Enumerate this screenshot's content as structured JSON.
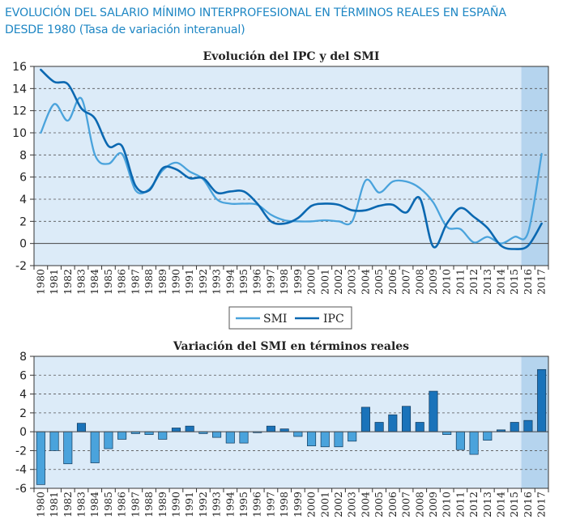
{
  "header": {
    "title_line1": "EVOLUCIÓN DEL SALARIO MÍNIMO INTERPROFESIONAL EN TÉRMINOS REALES EN ESPAÑA",
    "title_line2": "DESDE 1980 (Tasa de variación interanual)"
  },
  "colors": {
    "panel_bg": "#dcebf8",
    "highlight_bg": "#b5d4ee",
    "smi_line": "#4aa3dc",
    "ipc_line": "#0b68b1",
    "bar_neg": "#4aa3dc",
    "bar_pos": "#1a73ba",
    "bar_stroke": "#123a5c"
  },
  "chart_data": [
    {
      "type": "line",
      "title": "Evolución del IPC y del SMI",
      "categories": [
        "1980",
        "1981",
        "1982",
        "1983",
        "1984",
        "1985",
        "1986",
        "1987",
        "1988",
        "1989",
        "1990",
        "1991",
        "1992",
        "1993",
        "1994",
        "1995",
        "1996",
        "1997",
        "1998",
        "1999",
        "2000",
        "2001",
        "2002",
        "2003",
        "2004",
        "2005",
        "2006",
        "2007",
        "2008",
        "2009",
        "2010",
        "2011",
        "2012",
        "2013",
        "2014",
        "2015",
        "2016",
        "2017"
      ],
      "ylim": [
        -2,
        16
      ],
      "yticks": [
        -2,
        0,
        2,
        4,
        6,
        8,
        10,
        12,
        14,
        16
      ],
      "highlight_range": [
        "2016",
        "2017"
      ],
      "series": [
        {
          "name": "SMI",
          "values": [
            10.0,
            12.6,
            11.1,
            13.1,
            8.0,
            7.2,
            8.1,
            4.8,
            4.9,
            6.6,
            7.3,
            6.5,
            5.8,
            4.0,
            3.6,
            3.6,
            3.5,
            2.6,
            2.1,
            2.0,
            2.0,
            2.1,
            2.0,
            2.0,
            5.7,
            4.6,
            5.6,
            5.6,
            5.0,
            3.7,
            1.5,
            1.3,
            0.1,
            0.6,
            0.0,
            0.6,
            1.0,
            8.1
          ]
        },
        {
          "name": "IPC",
          "values": [
            15.7,
            14.6,
            14.4,
            12.2,
            11.3,
            8.8,
            8.8,
            5.2,
            4.8,
            6.8,
            6.7,
            5.9,
            5.9,
            4.6,
            4.7,
            4.7,
            3.6,
            2.0,
            1.8,
            2.3,
            3.4,
            3.6,
            3.5,
            3.0,
            3.0,
            3.4,
            3.5,
            2.8,
            4.1,
            -0.3,
            1.8,
            3.2,
            2.4,
            1.4,
            -0.2,
            -0.5,
            -0.2,
            1.8
          ]
        }
      ],
      "legend": {
        "position": "bottom-center",
        "entries": [
          "SMI",
          "IPC"
        ]
      }
    },
    {
      "type": "bar",
      "title": "Variación del SMI en términos reales",
      "categories": [
        "1980",
        "1981",
        "1982",
        "1983",
        "1984",
        "1985",
        "1986",
        "1987",
        "1988",
        "1989",
        "1990",
        "1991",
        "1992",
        "1993",
        "1994",
        "1995",
        "1996",
        "1997",
        "1998",
        "1999",
        "2000",
        "2001",
        "2002",
        "2003",
        "2004",
        "2005",
        "2006",
        "2007",
        "2008",
        "2009",
        "2010",
        "2011",
        "2012",
        "2013",
        "2014",
        "2015",
        "2016",
        "2017"
      ],
      "values": [
        -5.6,
        -2.0,
        -3.4,
        0.9,
        -3.3,
        -1.8,
        -0.8,
        -0.2,
        -0.3,
        -0.8,
        0.4,
        0.6,
        -0.2,
        -0.6,
        -1.2,
        -1.2,
        -0.1,
        0.6,
        0.3,
        -0.5,
        -1.5,
        -1.6,
        -1.6,
        -1.0,
        2.6,
        1.0,
        1.8,
        2.7,
        1.0,
        4.3,
        -0.3,
        -1.9,
        -2.4,
        -0.9,
        0.2,
        1.0,
        1.2,
        6.6
      ],
      "ylim": [
        -6,
        8
      ],
      "yticks": [
        -6,
        -4,
        -2,
        0,
        2,
        4,
        6,
        8
      ],
      "highlight_range": [
        "2016",
        "2017"
      ]
    }
  ]
}
